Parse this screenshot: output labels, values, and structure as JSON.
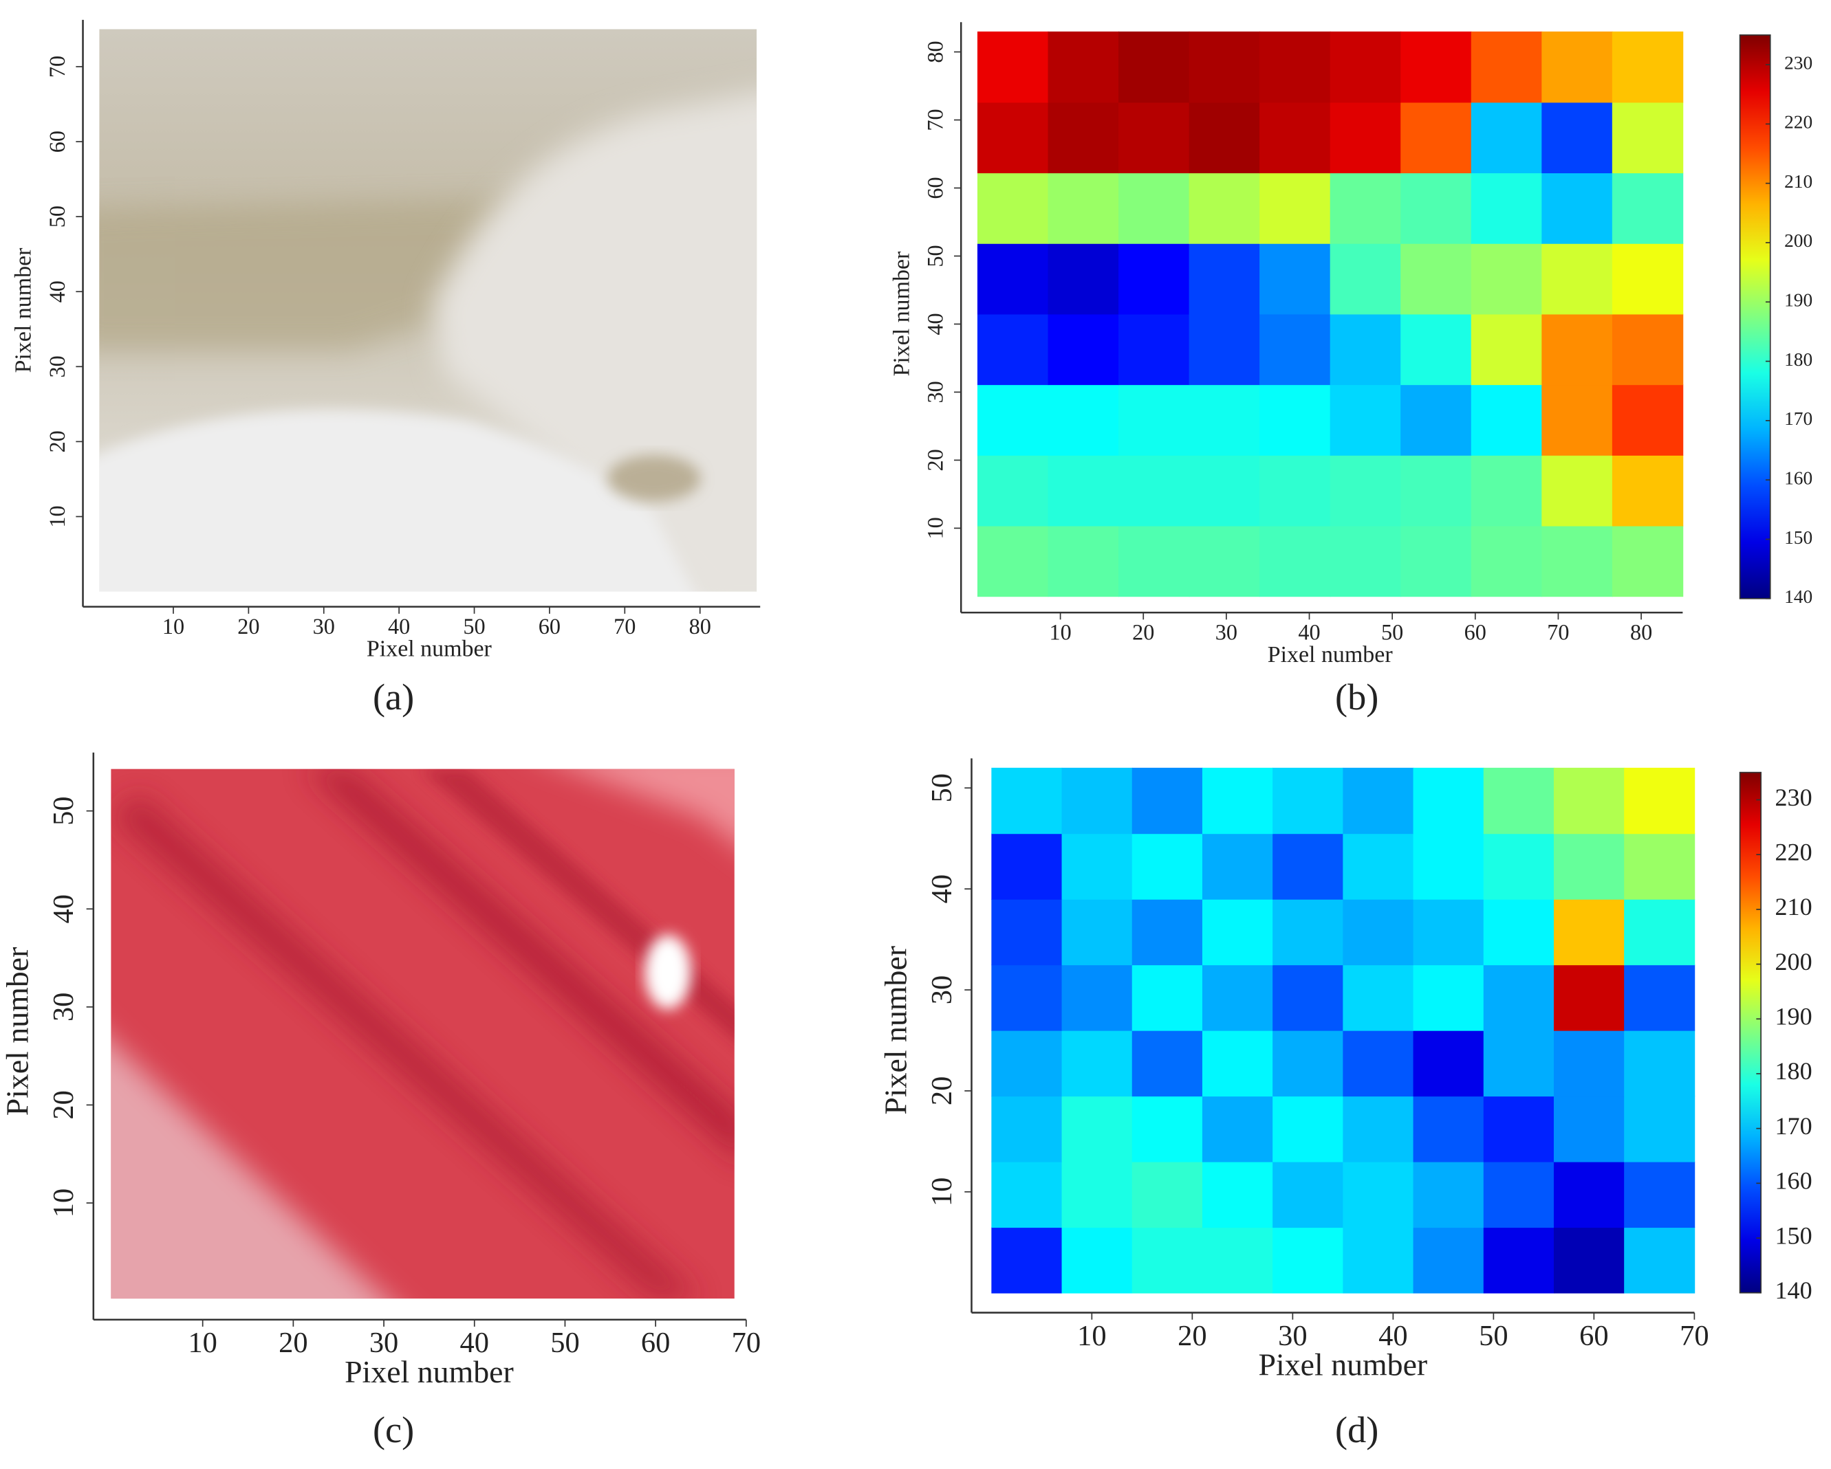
{
  "chart_data": [
    {
      "type": "image",
      "panel_label": "(a)",
      "xlabel": "Pixel number",
      "ylabel": "Pixel number",
      "xlim": [
        0,
        88
      ],
      "ylim": [
        0,
        75
      ],
      "xticks": [
        10,
        20,
        30,
        40,
        50,
        60,
        70,
        80
      ],
      "yticks": [
        10,
        20,
        30,
        40,
        50,
        60,
        70
      ]
    },
    {
      "type": "heatmap",
      "panel_label": "(b)",
      "xlabel": "Pixel number",
      "ylabel": "Pixel number",
      "xlim": [
        0,
        85
      ],
      "ylim": [
        0,
        83
      ],
      "xticks": [
        10,
        20,
        30,
        40,
        50,
        60,
        70,
        80
      ],
      "yticks": [
        10,
        20,
        30,
        40,
        50,
        60,
        70,
        80
      ],
      "colormap": "jet",
      "clim": [
        140,
        235
      ],
      "cticks": [
        140,
        150,
        160,
        170,
        180,
        190,
        200,
        210,
        220,
        230
      ],
      "z": [
        [
          185,
          184,
          183,
          183,
          182,
          182,
          183,
          185,
          186,
          188
        ],
        [
          180,
          179,
          179,
          179,
          180,
          181,
          182,
          184,
          195,
          205
        ],
        [
          176,
          176,
          177,
          177,
          176,
          172,
          168,
          175,
          210,
          218
        ],
        [
          155,
          152,
          154,
          158,
          163,
          170,
          178,
          195,
          210,
          212
        ],
        [
          150,
          148,
          152,
          158,
          165,
          182,
          188,
          190,
          195,
          198
        ],
        [
          192,
          190,
          188,
          192,
          195,
          185,
          183,
          178,
          170,
          182
        ],
        [
          228,
          231,
          230,
          232,
          229,
          226,
          215,
          170,
          158,
          195
        ],
        [
          225,
          230,
          232,
          231,
          230,
          228,
          225,
          215,
          208,
          205
        ]
      ]
    },
    {
      "type": "image",
      "panel_label": "(c)",
      "xlabel": "Pixel number",
      "ylabel": "Pixel number",
      "xlim": [
        0,
        70
      ],
      "ylim": [
        0,
        55
      ],
      "xticks": [
        10,
        20,
        30,
        40,
        50,
        60,
        70
      ],
      "yticks": [
        10,
        20,
        30,
        40,
        50
      ]
    },
    {
      "type": "heatmap",
      "panel_label": "(d)",
      "xlabel": "Pixel number",
      "ylabel": "Pixel number",
      "xlim": [
        0,
        70
      ],
      "ylim": [
        0,
        52
      ],
      "xticks": [
        10,
        20,
        30,
        40,
        50,
        60,
        70
      ],
      "yticks": [
        10,
        20,
        30,
        40,
        50
      ],
      "colormap": "jet",
      "clim": [
        140,
        235
      ],
      "cticks": [
        140,
        150,
        160,
        170,
        180,
        190,
        200,
        210,
        220,
        230
      ],
      "z": [
        [
          155,
          175,
          178,
          178,
          176,
          172,
          165,
          150,
          145,
          170
        ],
        [
          172,
          178,
          180,
          176,
          170,
          172,
          168,
          160,
          150,
          160
        ],
        [
          170,
          178,
          176,
          168,
          175,
          170,
          160,
          155,
          165,
          170
        ],
        [
          168,
          172,
          162,
          175,
          168,
          160,
          150,
          168,
          165,
          170
        ],
        [
          160,
          165,
          175,
          168,
          160,
          172,
          175,
          168,
          228,
          160
        ],
        [
          158,
          170,
          165,
          175,
          170,
          168,
          170,
          175,
          205,
          178
        ],
        [
          155,
          172,
          175,
          168,
          160,
          172,
          175,
          178,
          185,
          190
        ],
        [
          172,
          170,
          165,
          175,
          172,
          168,
          175,
          185,
          192,
          198
        ]
      ]
    }
  ]
}
